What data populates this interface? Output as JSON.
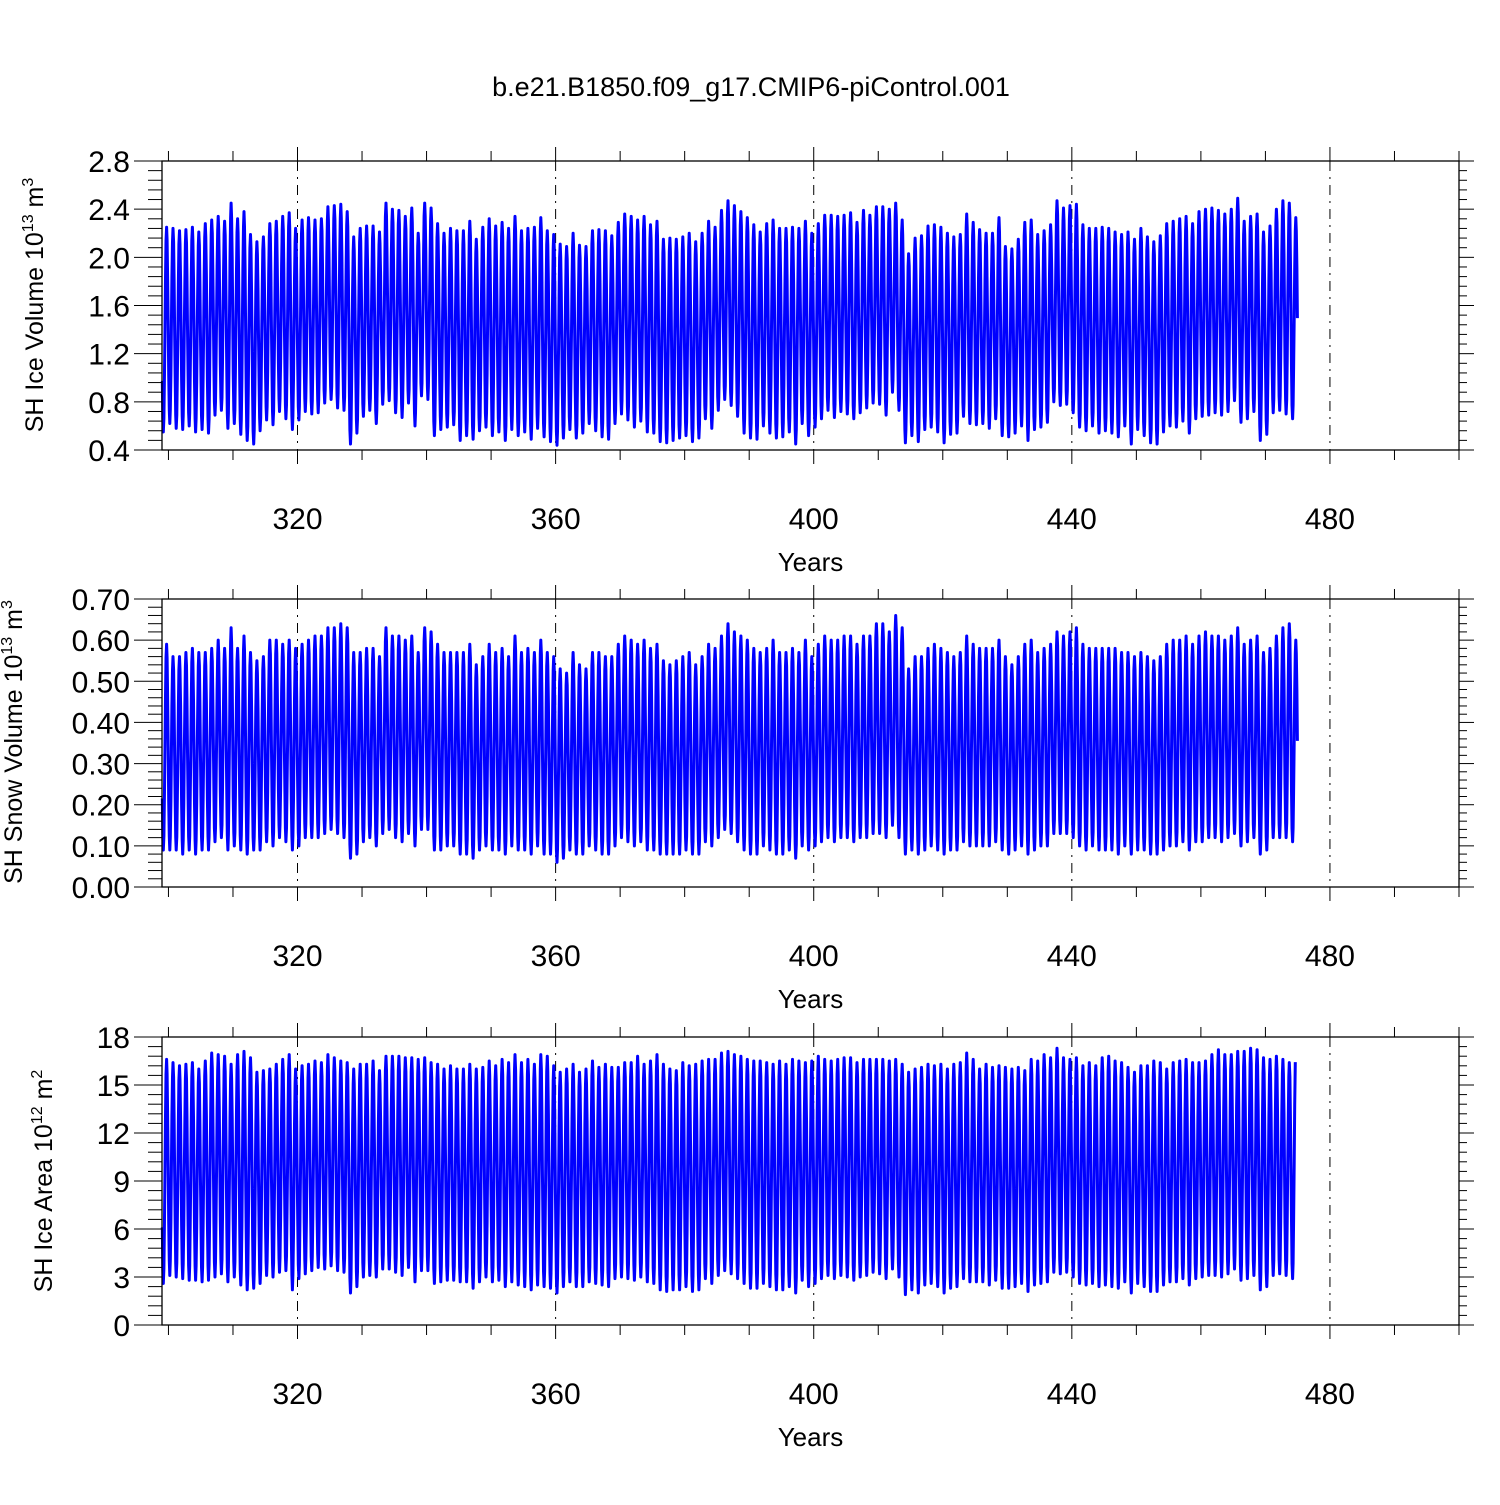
{
  "title": "b.e21.B1850.f09_g17.CMIP6-piControl.001",
  "colors": {
    "series": "#0000ff",
    "axis": "#000000",
    "grid": "#000000",
    "background": "#ffffff"
  },
  "chart_data": [
    {
      "type": "line",
      "name": "sh-ice-volume",
      "ylabel_main": "SH Ice Volume 10",
      "ylabel_exp": "13",
      "ylabel_unit": " m",
      "ylabel_unit_exp": "3",
      "xlabel": "Years",
      "xlim": [
        299,
        500
      ],
      "ylim": [
        0.4,
        2.8
      ],
      "yticks": [
        0.4,
        0.8,
        1.2,
        1.6,
        2.0,
        2.4,
        2.8
      ],
      "ytick_labels": [
        "0.4",
        "0.8",
        "1.2",
        "1.6",
        "2.0",
        "2.4",
        "2.8"
      ],
      "xticks": [
        320,
        360,
        400,
        440,
        480
      ],
      "xtick_labels": [
        "320",
        "360",
        "400",
        "440",
        "480"
      ],
      "grid": "vertical dashed at major x ticks",
      "seasonal_cycle": "annual (monthly data)",
      "year_start": 299,
      "maxima": [
        2.25,
        2.24,
        2.22,
        2.23,
        2.25,
        2.21,
        2.28,
        2.31,
        2.34,
        2.3,
        2.45,
        2.32,
        2.38,
        2.19,
        2.13,
        2.17,
        2.28,
        2.3,
        2.34,
        2.37,
        2.24,
        2.31,
        2.33,
        2.31,
        2.32,
        2.42,
        2.43,
        2.44,
        2.38,
        2.17,
        2.24,
        2.26,
        2.26,
        2.21,
        2.45,
        2.4,
        2.39,
        2.34,
        2.41,
        2.2,
        2.45,
        2.41,
        2.28,
        2.2,
        2.24,
        2.22,
        2.22,
        2.3,
        2.15,
        2.25,
        2.32,
        2.26,
        2.29,
        2.24,
        2.34,
        2.22,
        2.24,
        2.25,
        2.33,
        2.22,
        2.19,
        2.11,
        2.09,
        2.2,
        2.1,
        2.09,
        2.22,
        2.23,
        2.22,
        2.18,
        2.29,
        2.36,
        2.34,
        2.31,
        2.34,
        2.27,
        2.3,
        2.15,
        2.16,
        2.15,
        2.17,
        2.2,
        2.13,
        2.2,
        2.3,
        2.25,
        2.39,
        2.47,
        2.43,
        2.38,
        2.33,
        2.27,
        2.21,
        2.28,
        2.31,
        2.24,
        2.24,
        2.25,
        2.24,
        2.3,
        2.2,
        2.28,
        2.35,
        2.35,
        2.34,
        2.35,
        2.37,
        2.29,
        2.39,
        2.35,
        2.42,
        2.42,
        2.4,
        2.45,
        2.31,
        2.03,
        2.16,
        2.18,
        2.26,
        2.27,
        2.25,
        2.2,
        2.17,
        2.19,
        2.36,
        2.29,
        2.23,
        2.2,
        2.2,
        2.33,
        2.09,
        2.07,
        2.15,
        2.29,
        2.31,
        2.19,
        2.22,
        2.27,
        2.47,
        2.41,
        2.43,
        2.44,
        2.27,
        2.24,
        2.24,
        2.25,
        2.24,
        2.21,
        2.19,
        2.21,
        2.15,
        2.24,
        2.17,
        2.13,
        2.18,
        2.28,
        2.3,
        2.32,
        2.34,
        2.28,
        2.38,
        2.4,
        2.41,
        2.39,
        2.36,
        2.4,
        2.49,
        2.3,
        2.34,
        2.36,
        2.21,
        2.26,
        2.4,
        2.47,
        2.45,
        2.33
      ],
      "minima": [
        0.55,
        0.62,
        0.58,
        0.57,
        0.6,
        0.55,
        0.57,
        0.54,
        0.69,
        0.73,
        0.58,
        0.62,
        0.53,
        0.48,
        0.45,
        0.56,
        0.65,
        0.61,
        0.72,
        0.66,
        0.57,
        0.65,
        0.72,
        0.7,
        0.71,
        0.79,
        0.82,
        0.75,
        0.73,
        0.45,
        0.54,
        0.68,
        0.73,
        0.62,
        0.78,
        0.81,
        0.71,
        0.67,
        0.79,
        0.6,
        0.85,
        0.82,
        0.52,
        0.57,
        0.59,
        0.61,
        0.48,
        0.52,
        0.49,
        0.56,
        0.59,
        0.52,
        0.55,
        0.48,
        0.57,
        0.52,
        0.55,
        0.49,
        0.58,
        0.51,
        0.47,
        0.44,
        0.5,
        0.57,
        0.5,
        0.54,
        0.62,
        0.56,
        0.51,
        0.49,
        0.62,
        0.7,
        0.65,
        0.59,
        0.64,
        0.55,
        0.54,
        0.47,
        0.46,
        0.48,
        0.5,
        0.52,
        0.47,
        0.5,
        0.66,
        0.58,
        0.73,
        0.82,
        0.77,
        0.68,
        0.54,
        0.5,
        0.49,
        0.6,
        0.54,
        0.5,
        0.51,
        0.55,
        0.45,
        0.62,
        0.52,
        0.59,
        0.66,
        0.73,
        0.67,
        0.72,
        0.7,
        0.66,
        0.71,
        0.75,
        0.79,
        0.78,
        0.69,
        0.88,
        0.73,
        0.46,
        0.52,
        0.47,
        0.57,
        0.59,
        0.55,
        0.46,
        0.53,
        0.54,
        0.68,
        0.62,
        0.61,
        0.62,
        0.58,
        0.66,
        0.52,
        0.51,
        0.54,
        0.6,
        0.48,
        0.57,
        0.59,
        0.63,
        0.8,
        0.77,
        0.78,
        0.71,
        0.59,
        0.56,
        0.6,
        0.54,
        0.56,
        0.54,
        0.51,
        0.6,
        0.45,
        0.57,
        0.52,
        0.46,
        0.45,
        0.55,
        0.6,
        0.59,
        0.64,
        0.54,
        0.66,
        0.68,
        0.69,
        0.71,
        0.69,
        0.72,
        0.81,
        0.63,
        0.66,
        0.72,
        0.48,
        0.53,
        0.71,
        0.73,
        0.7,
        0.66
      ]
    },
    {
      "type": "line",
      "name": "sh-snow-volume",
      "ylabel_main": "SH Snow Volume 10",
      "ylabel_exp": "13",
      "ylabel_unit": " m",
      "ylabel_unit_exp": "3",
      "xlabel": "Years",
      "xlim": [
        299,
        500
      ],
      "ylim": [
        0.0,
        0.7
      ],
      "yticks": [
        0.0,
        0.1,
        0.2,
        0.3,
        0.4,
        0.5,
        0.6,
        0.7
      ],
      "ytick_labels": [
        "0.00",
        "0.10",
        "0.20",
        "0.30",
        "0.40",
        "0.50",
        "0.60",
        "0.70"
      ],
      "xticks": [
        320,
        360,
        400,
        440,
        480
      ],
      "xtick_labels": [
        "320",
        "360",
        "400",
        "440",
        "480"
      ],
      "grid": "vertical dashed at major x ticks",
      "seasonal_cycle": "annual (monthly data)",
      "year_start": 299,
      "maxima": [
        0.59,
        0.56,
        0.56,
        0.57,
        0.58,
        0.57,
        0.57,
        0.58,
        0.6,
        0.58,
        0.63,
        0.58,
        0.61,
        0.57,
        0.55,
        0.56,
        0.6,
        0.6,
        0.59,
        0.6,
        0.58,
        0.59,
        0.6,
        0.61,
        0.61,
        0.63,
        0.63,
        0.64,
        0.63,
        0.57,
        0.57,
        0.58,
        0.58,
        0.56,
        0.63,
        0.61,
        0.61,
        0.6,
        0.61,
        0.57,
        0.63,
        0.62,
        0.59,
        0.57,
        0.57,
        0.57,
        0.57,
        0.59,
        0.54,
        0.56,
        0.59,
        0.57,
        0.58,
        0.56,
        0.61,
        0.57,
        0.58,
        0.57,
        0.6,
        0.57,
        0.56,
        0.53,
        0.52,
        0.57,
        0.54,
        0.53,
        0.57,
        0.57,
        0.56,
        0.56,
        0.59,
        0.61,
        0.6,
        0.59,
        0.6,
        0.58,
        0.59,
        0.55,
        0.54,
        0.55,
        0.56,
        0.57,
        0.54,
        0.56,
        0.59,
        0.58,
        0.61,
        0.64,
        0.62,
        0.61,
        0.6,
        0.58,
        0.57,
        0.58,
        0.6,
        0.57,
        0.57,
        0.58,
        0.57,
        0.6,
        0.56,
        0.59,
        0.61,
        0.6,
        0.6,
        0.61,
        0.61,
        0.59,
        0.61,
        0.61,
        0.64,
        0.64,
        0.62,
        0.66,
        0.63,
        0.53,
        0.56,
        0.56,
        0.58,
        0.59,
        0.58,
        0.57,
        0.56,
        0.57,
        0.61,
        0.59,
        0.58,
        0.58,
        0.58,
        0.6,
        0.56,
        0.54,
        0.56,
        0.59,
        0.6,
        0.57,
        0.58,
        0.59,
        0.62,
        0.61,
        0.62,
        0.63,
        0.59,
        0.58,
        0.58,
        0.58,
        0.58,
        0.58,
        0.57,
        0.57,
        0.56,
        0.57,
        0.56,
        0.55,
        0.56,
        0.59,
        0.6,
        0.6,
        0.61,
        0.59,
        0.61,
        0.62,
        0.61,
        0.61,
        0.6,
        0.61,
        0.63,
        0.59,
        0.6,
        0.61,
        0.57,
        0.58,
        0.61,
        0.63,
        0.64,
        0.6
      ],
      "minima": [
        0.09,
        0.09,
        0.09,
        0.08,
        0.09,
        0.08,
        0.09,
        0.09,
        0.11,
        0.12,
        0.09,
        0.1,
        0.09,
        0.08,
        0.09,
        0.09,
        0.11,
        0.1,
        0.12,
        0.11,
        0.09,
        0.1,
        0.12,
        0.12,
        0.12,
        0.13,
        0.14,
        0.13,
        0.12,
        0.07,
        0.08,
        0.11,
        0.12,
        0.1,
        0.13,
        0.14,
        0.12,
        0.11,
        0.13,
        0.1,
        0.14,
        0.14,
        0.09,
        0.09,
        0.1,
        0.1,
        0.08,
        0.08,
        0.07,
        0.09,
        0.1,
        0.09,
        0.09,
        0.08,
        0.1,
        0.09,
        0.09,
        0.08,
        0.1,
        0.08,
        0.08,
        0.06,
        0.07,
        0.09,
        0.08,
        0.08,
        0.1,
        0.09,
        0.08,
        0.08,
        0.1,
        0.12,
        0.11,
        0.1,
        0.11,
        0.09,
        0.09,
        0.08,
        0.08,
        0.08,
        0.08,
        0.09,
        0.08,
        0.08,
        0.11,
        0.1,
        0.12,
        0.14,
        0.13,
        0.11,
        0.09,
        0.08,
        0.08,
        0.1,
        0.09,
        0.08,
        0.08,
        0.09,
        0.07,
        0.1,
        0.09,
        0.1,
        0.11,
        0.12,
        0.11,
        0.12,
        0.12,
        0.11,
        0.12,
        0.12,
        0.13,
        0.13,
        0.12,
        0.15,
        0.12,
        0.08,
        0.09,
        0.08,
        0.09,
        0.1,
        0.09,
        0.08,
        0.09,
        0.09,
        0.11,
        0.1,
        0.1,
        0.1,
        0.1,
        0.11,
        0.09,
        0.08,
        0.09,
        0.1,
        0.08,
        0.09,
        0.1,
        0.1,
        0.13,
        0.13,
        0.13,
        0.12,
        0.1,
        0.09,
        0.1,
        0.09,
        0.09,
        0.09,
        0.08,
        0.1,
        0.08,
        0.09,
        0.09,
        0.08,
        0.08,
        0.09,
        0.1,
        0.1,
        0.11,
        0.09,
        0.11,
        0.11,
        0.12,
        0.12,
        0.11,
        0.12,
        0.13,
        0.1,
        0.11,
        0.12,
        0.08,
        0.09,
        0.12,
        0.12,
        0.12,
        0.11
      ]
    },
    {
      "type": "line",
      "name": "sh-ice-area",
      "ylabel_main": "SH Ice Area 10",
      "ylabel_exp": "12",
      "ylabel_unit": " m",
      "ylabel_unit_exp": "2",
      "xlabel": "Years",
      "xlim": [
        299,
        500
      ],
      "ylim": [
        0,
        18
      ],
      "yticks": [
        0,
        3,
        6,
        9,
        12,
        15,
        18
      ],
      "ytick_labels": [
        "0",
        "3",
        "6",
        "9",
        "12",
        "15",
        "18"
      ],
      "xticks": [
        320,
        360,
        400,
        440,
        480
      ],
      "xtick_labels": [
        "320",
        "360",
        "400",
        "440",
        "480"
      ],
      "grid": "vertical dashed at major x ticks",
      "seasonal_cycle": "annual (monthly data)",
      "year_start": 299,
      "maxima": [
        16.6,
        16.4,
        16.2,
        16.3,
        16.4,
        16.0,
        16.5,
        17.0,
        16.9,
        16.8,
        16.3,
        16.9,
        17.1,
        16.7,
        15.8,
        15.9,
        16.0,
        16.3,
        16.6,
        16.9,
        16.0,
        16.2,
        16.3,
        16.5,
        16.4,
        16.9,
        16.7,
        16.5,
        16.4,
        16.0,
        16.3,
        16.3,
        16.5,
        15.9,
        16.8,
        16.8,
        16.8,
        16.7,
        16.7,
        16.6,
        16.7,
        16.4,
        16.3,
        16.0,
        16.2,
        16.0,
        16.0,
        16.3,
        16.0,
        16.1,
        16.5,
        16.2,
        16.6,
        16.4,
        16.9,
        16.4,
        16.6,
        16.3,
        16.9,
        16.8,
        16.2,
        15.8,
        16.0,
        16.3,
        15.8,
        16.0,
        16.5,
        16.1,
        16.3,
        16.1,
        16.1,
        16.4,
        16.4,
        16.8,
        16.3,
        16.5,
        16.9,
        16.3,
        16.0,
        15.9,
        16.4,
        16.2,
        16.3,
        16.5,
        16.6,
        16.6,
        17.0,
        17.1,
        16.9,
        16.8,
        16.6,
        16.5,
        16.5,
        16.4,
        16.3,
        16.5,
        16.3,
        16.6,
        16.5,
        16.4,
        16.5,
        16.8,
        16.6,
        16.5,
        16.6,
        16.7,
        16.7,
        16.4,
        16.6,
        16.6,
        16.6,
        16.6,
        16.5,
        16.6,
        16.3,
        15.8,
        16.0,
        16.1,
        16.3,
        16.2,
        16.3,
        16.0,
        16.3,
        16.4,
        17.0,
        16.6,
        16.0,
        16.3,
        16.1,
        16.2,
        16.1,
        16.0,
        16.1,
        15.9,
        16.6,
        16.5,
        16.9,
        16.7,
        17.3,
        16.7,
        16.6,
        16.7,
        16.2,
        16.4,
        16.2,
        16.7,
        16.8,
        16.5,
        16.4,
        16.1,
        15.8,
        16.2,
        16.2,
        16.5,
        16.4,
        16.0,
        16.4,
        16.5,
        16.6,
        16.4,
        16.4,
        16.5,
        16.9,
        17.2,
        16.9,
        16.9,
        17.1,
        17.1,
        17.3,
        17.2,
        16.7,
        16.6,
        16.8,
        16.6,
        16.4,
        17.4,
        16.7,
        16.5
      ],
      "minima": [
        2.6,
        3.1,
        3.0,
        2.9,
        2.8,
        2.8,
        2.7,
        2.8,
        3.0,
        3.2,
        2.7,
        3.0,
        2.5,
        2.2,
        2.3,
        2.6,
        3.1,
        3.0,
        3.3,
        3.4,
        2.2,
        2.9,
        3.2,
        3.4,
        3.6,
        3.5,
        3.7,
        3.4,
        3.3,
        2.0,
        2.4,
        3.0,
        3.1,
        3.0,
        3.5,
        3.5,
        3.3,
        3.1,
        3.6,
        2.7,
        3.4,
        3.4,
        2.6,
        2.7,
        2.8,
        2.8,
        2.7,
        2.7,
        2.3,
        2.7,
        3.0,
        2.7,
        2.8,
        2.4,
        2.7,
        2.5,
        2.4,
        2.2,
        2.5,
        2.4,
        2.3,
        2.0,
        2.4,
        2.7,
        2.4,
        2.4,
        2.7,
        2.6,
        2.5,
        2.4,
        2.9,
        3.0,
        2.9,
        2.8,
        3.0,
        2.7,
        2.6,
        2.2,
        2.1,
        2.2,
        2.2,
        2.4,
        2.1,
        2.2,
        2.9,
        2.6,
        3.1,
        3.4,
        3.2,
        2.9,
        2.6,
        2.3,
        2.3,
        2.6,
        2.4,
        2.2,
        2.2,
        2.4,
        2.0,
        2.8,
        2.4,
        2.6,
        2.9,
        3.1,
        2.9,
        3.1,
        3.0,
        2.8,
        3.0,
        3.1,
        3.3,
        3.2,
        2.9,
        3.5,
        3.0,
        1.9,
        2.2,
        2.0,
        2.5,
        2.6,
        2.4,
        2.0,
        2.3,
        2.4,
        2.9,
        2.7,
        2.7,
        2.7,
        2.5,
        2.8,
        2.3,
        2.3,
        2.4,
        2.6,
        2.1,
        2.5,
        2.6,
        2.7,
        3.3,
        3.2,
        3.3,
        3.0,
        2.6,
        2.5,
        2.6,
        2.4,
        2.5,
        2.4,
        2.3,
        2.7,
        2.0,
        2.6,
        2.4,
        2.1,
        2.1,
        2.5,
        2.7,
        2.7,
        2.9,
        2.5,
        2.9,
        3.0,
        3.1,
        3.1,
        3.0,
        3.2,
        3.5,
        2.8,
        2.9,
        3.1,
        2.2,
        2.4,
        3.1,
        3.2,
        3.1,
        2.9
      ]
    }
  ]
}
